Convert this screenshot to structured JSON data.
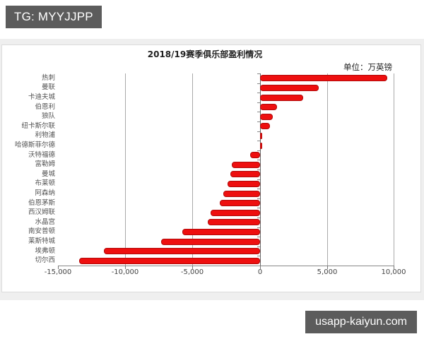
{
  "watermark_top": "TG: MYYJJPP",
  "watermark_bottom": "usapp-kaiyun.com",
  "chart": {
    "title": "2018/19赛季俱乐部盈利情况",
    "unit": "单位：万英镑",
    "x_ticks": [
      "-15,000",
      "-10,000",
      "-5,000",
      "0",
      "5,000",
      "10,000"
    ],
    "bar_color": "#ee0f0f"
  },
  "chart_data": {
    "type": "bar",
    "orientation": "horizontal",
    "title": "2018/19赛季俱乐部盈利情况",
    "subtitle": "单位：万英镑",
    "xlabel": "",
    "ylabel": "",
    "xlim": [
      -15000,
      10000
    ],
    "x_ticks": [
      -15000,
      -10000,
      -5000,
      0,
      5000,
      10000
    ],
    "grid": true,
    "legend": null,
    "categories": [
      "热刺",
      "曼联",
      "卡迪夫城",
      "伯恩利",
      "狼队",
      "纽卡斯尔联",
      "利物浦",
      "哈德斯菲尔德",
      "沃特福德",
      "富勒姆",
      "曼城",
      "布莱顿",
      "阿森纳",
      "伯恩茅斯",
      "西汉姆联",
      "水晶宫",
      "南安普顿",
      "莱斯特城",
      "埃弗顿",
      "切尔西"
    ],
    "values": [
      9500,
      4400,
      3200,
      1300,
      950,
      750,
      200,
      200,
      -700,
      -2100,
      -2200,
      -2400,
      -2700,
      -2950,
      -3650,
      -3850,
      -5750,
      -7350,
      -11600,
      -13450
    ]
  }
}
